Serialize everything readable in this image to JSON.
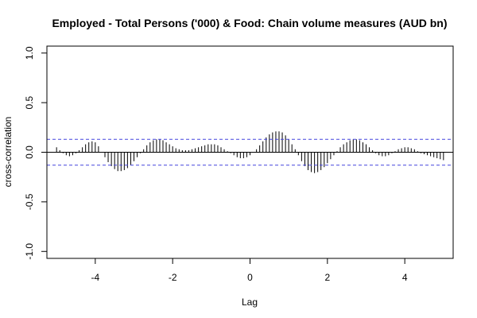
{
  "chart_data": {
    "type": "bar",
    "title": "Employed - Total Persons ('000) & Food: Chain volume measures (AUD bn)",
    "xlabel": "Lag",
    "ylabel": "cross-correlation",
    "xlim": [
      -5.25,
      5.25
    ],
    "ylim": [
      -1.07,
      1.07
    ],
    "x_ticks": [
      -4,
      -2,
      0,
      2,
      4
    ],
    "x_tick_labels": [
      "-4",
      "-2",
      "0",
      "2",
      "4"
    ],
    "y_ticks": [
      -1.0,
      -0.5,
      0.0,
      0.5,
      1.0
    ],
    "y_tick_labels": [
      "-1.0",
      "-0.5",
      "0.0",
      "0.5",
      "1.0"
    ],
    "confidence_band": 0.13,
    "grid": false,
    "colors": {
      "bars": "#000000",
      "zero_line": "#000000",
      "confidence": "#4444dd",
      "frame": "#000000"
    },
    "lags": [
      -5.0,
      -4.917,
      -4.833,
      -4.75,
      -4.667,
      -4.583,
      -4.5,
      -4.417,
      -4.333,
      -4.25,
      -4.167,
      -4.083,
      -4.0,
      -3.917,
      -3.833,
      -3.75,
      -3.667,
      -3.583,
      -3.5,
      -3.417,
      -3.333,
      -3.25,
      -3.167,
      -3.083,
      -3.0,
      -2.917,
      -2.833,
      -2.75,
      -2.667,
      -2.583,
      -2.5,
      -2.417,
      -2.333,
      -2.25,
      -2.167,
      -2.083,
      -2.0,
      -1.917,
      -1.833,
      -1.75,
      -1.667,
      -1.583,
      -1.5,
      -1.417,
      -1.333,
      -1.25,
      -1.167,
      -1.083,
      -1.0,
      -0.917,
      -0.833,
      -0.75,
      -0.667,
      -0.583,
      -0.5,
      -0.417,
      -0.333,
      -0.25,
      -0.167,
      -0.083,
      0.0,
      0.083,
      0.167,
      0.25,
      0.333,
      0.417,
      0.5,
      0.583,
      0.667,
      0.75,
      0.833,
      0.917,
      1.0,
      1.083,
      1.167,
      1.25,
      1.333,
      1.417,
      1.5,
      1.583,
      1.667,
      1.75,
      1.833,
      1.917,
      2.0,
      2.083,
      2.167,
      2.25,
      2.333,
      2.417,
      2.5,
      2.583,
      2.667,
      2.75,
      2.833,
      2.917,
      3.0,
      3.083,
      3.167,
      3.25,
      3.333,
      3.417,
      3.5,
      3.583,
      3.667,
      3.75,
      3.833,
      3.917,
      4.0,
      4.083,
      4.167,
      4.25,
      4.333,
      4.417,
      4.5,
      4.583,
      4.667,
      4.75,
      4.833,
      4.917,
      5.0
    ],
    "values": [
      0.05,
      0.02,
      -0.01,
      -0.03,
      -0.04,
      -0.03,
      -0.01,
      0.02,
      0.05,
      0.08,
      0.1,
      0.11,
      0.1,
      0.06,
      0.0,
      -0.05,
      -0.1,
      -0.14,
      -0.17,
      -0.19,
      -0.19,
      -0.18,
      -0.16,
      -0.13,
      -0.09,
      -0.05,
      -0.01,
      0.03,
      0.07,
      0.1,
      0.12,
      0.13,
      0.13,
      0.12,
      0.1,
      0.08,
      0.06,
      0.04,
      0.03,
      0.02,
      0.02,
      0.02,
      0.03,
      0.04,
      0.05,
      0.06,
      0.07,
      0.08,
      0.08,
      0.08,
      0.07,
      0.05,
      0.03,
      0.01,
      -0.01,
      -0.03,
      -0.05,
      -0.06,
      -0.06,
      -0.05,
      -0.03,
      0.0,
      0.03,
      0.07,
      0.11,
      0.15,
      0.18,
      0.2,
      0.21,
      0.21,
      0.2,
      0.17,
      0.13,
      0.08,
      0.03,
      -0.03,
      -0.09,
      -0.14,
      -0.18,
      -0.2,
      -0.21,
      -0.2,
      -0.18,
      -0.15,
      -0.11,
      -0.07,
      -0.03,
      0.01,
      0.05,
      0.08,
      0.1,
      0.12,
      0.13,
      0.13,
      0.12,
      0.1,
      0.08,
      0.05,
      0.02,
      -0.01,
      -0.03,
      -0.04,
      -0.04,
      -0.03,
      -0.01,
      0.01,
      0.03,
      0.04,
      0.05,
      0.05,
      0.04,
      0.03,
      0.01,
      -0.01,
      -0.02,
      -0.03,
      -0.04,
      -0.05,
      -0.06,
      -0.07,
      -0.08
    ]
  }
}
